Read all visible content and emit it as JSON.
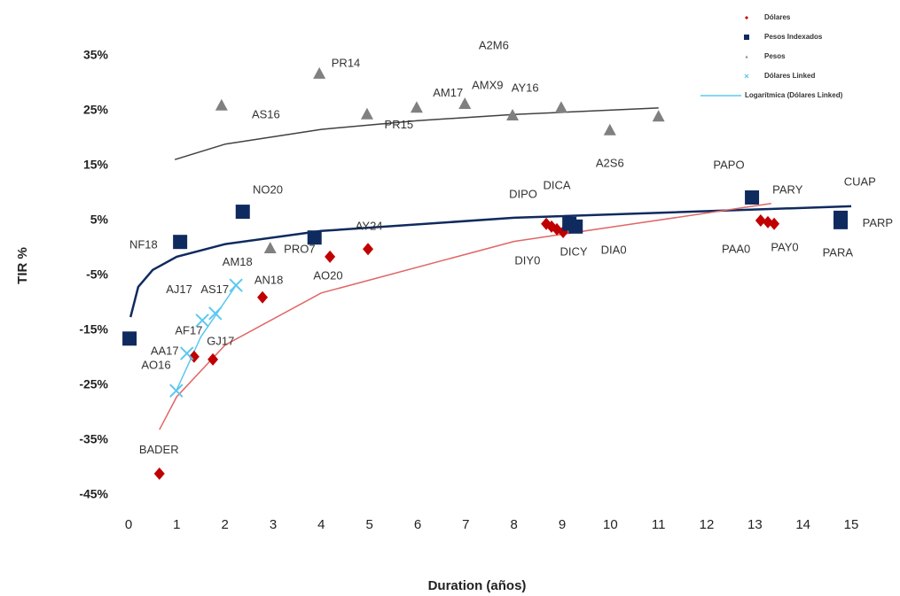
{
  "chart_data": {
    "type": "scatter",
    "x_label": "Duration (años)",
    "y_label": "TIR %",
    "xlim": [
      0,
      15
    ],
    "ylim": [
      -45,
      35
    ],
    "xticks": [
      0,
      1,
      2,
      3,
      4,
      5,
      6,
      7,
      8,
      9,
      10,
      11,
      12,
      13,
      14,
      15
    ],
    "yticks": [
      {
        "value": -45,
        "label": "-45%"
      },
      {
        "value": -35,
        "label": "-35%"
      },
      {
        "value": -25,
        "label": "-25%"
      },
      {
        "value": -15,
        "label": "-15%"
      },
      {
        "value": -5,
        "label": "-5%"
      },
      {
        "value": 5,
        "label": "5%"
      },
      {
        "value": 15,
        "label": "15%"
      },
      {
        "value": 25,
        "label": "25%"
      },
      {
        "value": 35,
        "label": "35%"
      }
    ],
    "legend": "top-right",
    "series": [
      {
        "name": "Dólares",
        "color": "#c00000",
        "marker": "diamond",
        "x": [
          0.64,
          1.36,
          1.75,
          2.78,
          4.18,
          4.97,
          8.67,
          8.78,
          8.89,
          9.02,
          13.12,
          13.27,
          13.4
        ],
        "values": [
          -41.1,
          -19.8,
          -20.3,
          -9.0,
          -1.6,
          -0.2,
          4.4,
          3.9,
          3.4,
          2.9,
          5.0,
          4.7,
          4.4
        ]
      },
      {
        "name": "Pesos Indexados",
        "color": "#0f2a5f",
        "marker": "square",
        "x": [
          0.02,
          1.07,
          2.37,
          3.86,
          9.15,
          9.28,
          12.94,
          14.78,
          14.78
        ],
        "values": [
          -16.5,
          1.1,
          6.6,
          1.9,
          4.4,
          3.9,
          9.2,
          5.5,
          4.7
        ]
      },
      {
        "name": "Pesos",
        "color": "#808080",
        "marker": "triangle",
        "x": [
          1.93,
          3.96,
          4.95,
          5.98,
          6.98,
          7.97,
          8.98,
          9.99,
          11.0,
          2.94
        ],
        "values": [
          26.0,
          31.8,
          24.4,
          25.6,
          26.3,
          24.2,
          25.6,
          21.5,
          24.0,
          0.0
        ]
      },
      {
        "name": "Dólares Linked",
        "color": "#5bc8f0",
        "marker": "x",
        "x": [
          0.99,
          1.21,
          1.53,
          1.8,
          2.23
        ],
        "values": [
          -26.0,
          -19.2,
          -13.2,
          -11.9,
          -6.8
        ]
      }
    ],
    "trendlines": [
      {
        "color": "#404040",
        "x": [
          0.96,
          2,
          4,
          6,
          8,
          11
        ],
        "values": [
          16.1,
          18.9,
          21.6,
          23.2,
          24.3,
          25.5
        ]
      },
      {
        "color": "#0f2a5f",
        "x": [
          0.04,
          0.2,
          0.5,
          1,
          2,
          4,
          8,
          15
        ],
        "values": [
          -12.6,
          -7.1,
          -4.0,
          -1.6,
          0.7,
          3.1,
          5.5,
          7.6
        ]
      },
      {
        "color": "#e06666",
        "x": [
          0.64,
          1,
          2,
          4,
          8,
          13.34
        ],
        "values": [
          -33.1,
          -27.1,
          -17.7,
          -8.2,
          1.2,
          8.1
        ]
      },
      {
        "name": "Logarítmica (Dólares Linked)",
        "color": "#5bc8f0",
        "x": [
          0.99,
          1.5,
          2.23
        ],
        "values": [
          -26.0,
          -16.2,
          -6.8
        ]
      }
    ],
    "annotations": [
      {
        "text": "A2M6",
        "x": 7.58,
        "y": 36.8
      },
      {
        "text": "PR14",
        "x": 4.51,
        "y": 33.5
      },
      {
        "text": "AM17",
        "x": 6.63,
        "y": 28.1
      },
      {
        "text": "AMX9",
        "x": 7.45,
        "y": 29.5
      },
      {
        "text": "AY16",
        "x": 8.23,
        "y": 29.0
      },
      {
        "text": "AS16",
        "x": 2.85,
        "y": 24.2
      },
      {
        "text": "PR15",
        "x": 5.61,
        "y": 22.3
      },
      {
        "text": "A2S6",
        "x": 9.99,
        "y": 15.3
      },
      {
        "text": "PAPO",
        "x": 12.46,
        "y": 15.0
      },
      {
        "text": "NO20",
        "x": 2.89,
        "y": 10.5
      },
      {
        "text": "DIPO",
        "x": 8.19,
        "y": 9.7
      },
      {
        "text": "DICA",
        "x": 8.89,
        "y": 11.3
      },
      {
        "text": "PARY",
        "x": 13.68,
        "y": 10.5
      },
      {
        "text": "CUAP",
        "x": 15.18,
        "y": 11.9
      },
      {
        "text": "NF18",
        "x": 0.31,
        "y": 0.5
      },
      {
        "text": "PRO7",
        "x": 3.55,
        "y": -0.3
      },
      {
        "text": "AY24",
        "x": 4.99,
        "y": 3.9
      },
      {
        "text": "PAA0",
        "x": 12.61,
        "y": -0.3
      },
      {
        "text": "PAY0",
        "x": 13.62,
        "y": -0.0
      },
      {
        "text": "PARA",
        "x": 14.72,
        "y": -1.0
      },
      {
        "text": "PARP",
        "x": 15.55,
        "y": 4.4
      },
      {
        "text": "DIY0",
        "x": 8.28,
        "y": -2.4
      },
      {
        "text": "DICY",
        "x": 9.24,
        "y": -0.8
      },
      {
        "text": "DIA0",
        "x": 10.07,
        "y": -0.5
      },
      {
        "text": "AM18",
        "x": 2.26,
        "y": -2.7
      },
      {
        "text": "AO20",
        "x": 4.14,
        "y": -5.2
      },
      {
        "text": "AN18",
        "x": 2.91,
        "y": -6.0
      },
      {
        "text": "AJ17",
        "x": 1.05,
        "y": -7.7
      },
      {
        "text": "AS17",
        "x": 1.79,
        "y": -7.7
      },
      {
        "text": "AF17",
        "x": 1.25,
        "y": -15.2
      },
      {
        "text": "GJ17",
        "x": 1.91,
        "y": -17.1
      },
      {
        "text": "AA17",
        "x": 0.75,
        "y": -18.9
      },
      {
        "text": "AO16",
        "x": 0.57,
        "y": -21.5
      },
      {
        "text": "BADER",
        "x": 0.63,
        "y": -36.9
      }
    ]
  }
}
